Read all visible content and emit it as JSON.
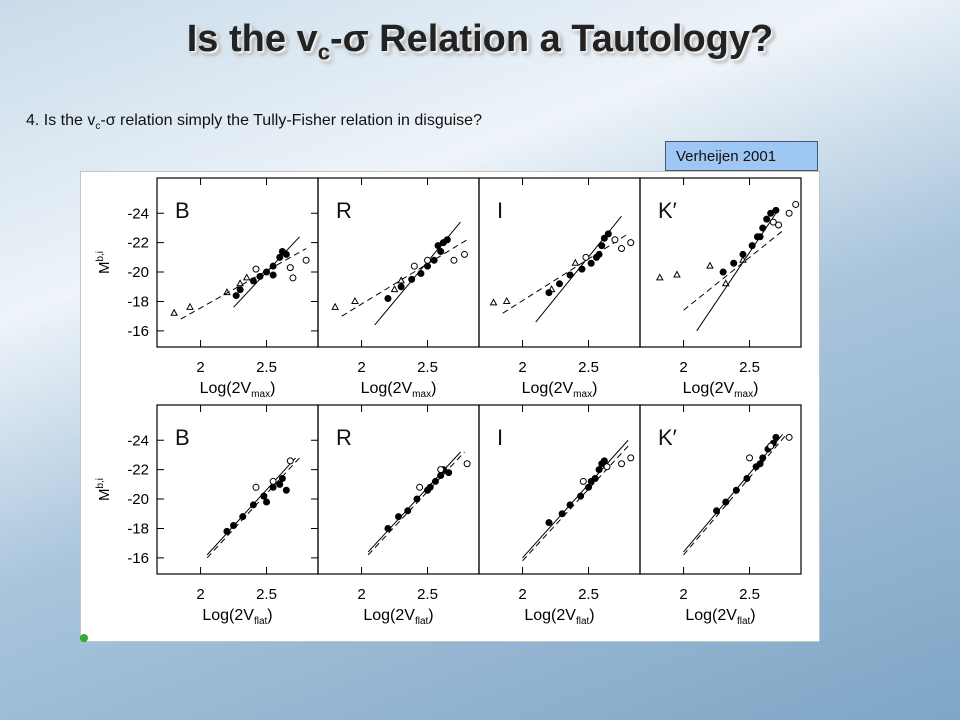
{
  "title": [
    "Is the v",
    "c",
    "-σ Relation a Tautology?"
  ],
  "question": [
    "4. Is the v",
    "c",
    "-σ relation simply the Tully-Fisher relation in disguise?"
  ],
  "citation": "Verheijen 2001",
  "chart_data": [
    {
      "type": "scatter",
      "title": "B",
      "xlabel": [
        "Log(2V",
        "max",
        ")"
      ],
      "ylabel": [
        "M",
        "b,i"
      ],
      "xlim": [
        1.67,
        2.89
      ],
      "ylim": [
        -14.9,
        -26.4
      ],
      "xticks": [
        2,
        2.5
      ],
      "yticks": [
        -24,
        -22,
        -20,
        -18,
        -16
      ],
      "series": [
        {
          "marker": "dot",
          "x": [
            2.27,
            2.3,
            2.4,
            2.45,
            2.5,
            2.55,
            2.6,
            2.62,
            2.65,
            2.55
          ],
          "values": [
            -18.4,
            -18.8,
            -19.4,
            -19.7,
            -20,
            -20.4,
            -21,
            -21.4,
            -21.2,
            -19.8
          ]
        },
        {
          "marker": "circle",
          "x": [
            2.7,
            2.8,
            2.68,
            2.42
          ],
          "values": [
            -19.6,
            -20.8,
            -20.3,
            -20.2
          ]
        },
        {
          "marker": "triangle",
          "x": [
            1.8,
            1.92,
            2.2,
            2.3,
            2.35
          ],
          "values": [
            -17.2,
            -17.6,
            -18.6,
            -19.2,
            -19.6
          ]
        }
      ],
      "fits": [
        {
          "style": "solid",
          "x": [
            2.25,
            2.75
          ],
          "values": [
            -17.6,
            -22.4
          ]
        },
        {
          "style": "dashed",
          "x": [
            1.85,
            2.8
          ],
          "values": [
            -16.8,
            -21.6
          ]
        }
      ]
    },
    {
      "type": "scatter",
      "title": "R",
      "xlabel": [
        "Log(2V",
        "max",
        ")"
      ],
      "xlim": [
        1.67,
        2.89
      ],
      "ylim": [
        -14.9,
        -26.4
      ],
      "xticks": [
        2,
        2.5
      ],
      "series": [
        {
          "marker": "dot",
          "x": [
            2.2,
            2.3,
            2.38,
            2.45,
            2.5,
            2.55,
            2.6,
            2.62,
            2.65,
            2.58
          ],
          "values": [
            -18.2,
            -19,
            -19.5,
            -19.9,
            -20.4,
            -20.8,
            -21.4,
            -22,
            -22.2,
            -21.8
          ]
        },
        {
          "marker": "circle",
          "x": [
            2.7,
            2.78,
            2.5,
            2.4
          ],
          "values": [
            -20.8,
            -21.2,
            -20.8,
            -20.4
          ]
        },
        {
          "marker": "triangle",
          "x": [
            1.8,
            1.95,
            2.25,
            2.3
          ],
          "values": [
            -17.6,
            -18,
            -18.8,
            -19.4
          ]
        }
      ],
      "fits": [
        {
          "style": "solid",
          "x": [
            2.1,
            2.75
          ],
          "values": [
            -16.4,
            -23.4
          ]
        },
        {
          "style": "dashed",
          "x": [
            1.85,
            2.8
          ],
          "values": [
            -17,
            -22.2
          ]
        }
      ]
    },
    {
      "type": "scatter",
      "title": "I",
      "xlabel": [
        "Log(2V",
        "max",
        ")"
      ],
      "xlim": [
        1.67,
        2.89
      ],
      "ylim": [
        -14.9,
        -26.4
      ],
      "xticks": [
        2,
        2.5
      ],
      "series": [
        {
          "marker": "dot",
          "x": [
            2.2,
            2.28,
            2.36,
            2.45,
            2.52,
            2.56,
            2.6,
            2.62,
            2.65,
            2.58
          ],
          "values": [
            -18.6,
            -19.2,
            -19.8,
            -20.2,
            -20.6,
            -21,
            -21.8,
            -22.3,
            -22.6,
            -21.2
          ]
        },
        {
          "marker": "circle",
          "x": [
            2.75,
            2.82,
            2.48,
            2.7
          ],
          "values": [
            -21.6,
            -22,
            -21,
            -22.2
          ]
        },
        {
          "marker": "triangle",
          "x": [
            1.78,
            1.88,
            2.22,
            2.4
          ],
          "values": [
            -17.9,
            -18,
            -18.8,
            -20.6
          ]
        }
      ],
      "fits": [
        {
          "style": "solid",
          "x": [
            2.1,
            2.75
          ],
          "values": [
            -16.6,
            -23.8
          ]
        },
        {
          "style": "dashed",
          "x": [
            1.85,
            2.8
          ],
          "values": [
            -17.2,
            -22.6
          ]
        }
      ]
    },
    {
      "type": "scatter",
      "title": "K′",
      "xlabel": [
        "Log(2V",
        "max",
        ")"
      ],
      "xlim": [
        1.67,
        2.89
      ],
      "ylim": [
        -14.9,
        -26.4
      ],
      "xticks": [
        2,
        2.5
      ],
      "series": [
        {
          "marker": "dot",
          "x": [
            2.3,
            2.38,
            2.45,
            2.52,
            2.56,
            2.6,
            2.63,
            2.66,
            2.7,
            2.58
          ],
          "values": [
            -20,
            -20.6,
            -21.2,
            -21.8,
            -22.4,
            -23,
            -23.6,
            -24,
            -24.2,
            -22.4
          ]
        },
        {
          "marker": "circle",
          "x": [
            2.72,
            2.8,
            2.68,
            2.85
          ],
          "values": [
            -23.2,
            -24,
            -23.4,
            -24.6
          ]
        },
        {
          "marker": "triangle",
          "x": [
            1.82,
            1.95,
            2.2,
            2.32,
            2.45
          ],
          "values": [
            -19.6,
            -19.8,
            -20.4,
            -19.2,
            -20.8
          ]
        }
      ],
      "fits": [
        {
          "style": "solid",
          "x": [
            2.1,
            2.7
          ],
          "values": [
            -16,
            -24
          ]
        },
        {
          "style": "dashed",
          "x": [
            2.0,
            2.75
          ],
          "values": [
            -17.4,
            -22.8
          ]
        }
      ]
    },
    {
      "type": "scatter",
      "title": "B",
      "xlabel": [
        "Log(2V",
        "flat",
        ")"
      ],
      "ylabel": [
        "M",
        "b,i"
      ],
      "xlim": [
        1.67,
        2.89
      ],
      "ylim": [
        -14.9,
        -26.4
      ],
      "xticks": [
        2,
        2.5
      ],
      "yticks": [
        -24,
        -22,
        -20,
        -18,
        -16
      ],
      "series": [
        {
          "marker": "dot",
          "x": [
            2.2,
            2.25,
            2.32,
            2.4,
            2.48,
            2.55,
            2.6,
            2.62,
            2.65,
            2.5
          ],
          "values": [
            -17.8,
            -18.2,
            -18.8,
            -19.6,
            -20.2,
            -20.8,
            -21,
            -21.4,
            -20.6,
            -19.8
          ]
        },
        {
          "marker": "circle",
          "x": [
            2.42,
            2.55,
            2.68
          ],
          "values": [
            -20.8,
            -21.2,
            -22.6
          ]
        }
      ],
      "fits": [
        {
          "style": "solid",
          "x": [
            2.05,
            2.72
          ],
          "values": [
            -16.2,
            -22.8
          ]
        },
        {
          "style": "dashed",
          "x": [
            2.05,
            2.75
          ],
          "values": [
            -16,
            -22.8
          ]
        }
      ]
    },
    {
      "type": "scatter",
      "title": "R",
      "xlabel": [
        "Log(2V",
        "flat",
        ")"
      ],
      "xlim": [
        1.67,
        2.89
      ],
      "ylim": [
        -14.9,
        -26.4
      ],
      "xticks": [
        2,
        2.5
      ],
      "series": [
        {
          "marker": "dot",
          "x": [
            2.2,
            2.28,
            2.35,
            2.42,
            2.5,
            2.56,
            2.6,
            2.62,
            2.66,
            2.52
          ],
          "values": [
            -18,
            -18.8,
            -19.2,
            -20,
            -20.6,
            -21.2,
            -21.6,
            -22,
            -21.8,
            -20.8
          ]
        },
        {
          "marker": "circle",
          "x": [
            2.44,
            2.6,
            2.8
          ],
          "values": [
            -20.8,
            -22,
            -22.4
          ]
        }
      ],
      "fits": [
        {
          "style": "solid",
          "x": [
            2.05,
            2.75
          ],
          "values": [
            -16.4,
            -23.2
          ]
        },
        {
          "style": "dashed",
          "x": [
            2.05,
            2.78
          ],
          "values": [
            -16.2,
            -23.2
          ]
        }
      ]
    },
    {
      "type": "scatter",
      "title": "I",
      "xlabel": [
        "Log(2V",
        "flat",
        ")"
      ],
      "xlim": [
        1.67,
        2.89
      ],
      "ylim": [
        -14.9,
        -26.4
      ],
      "xticks": [
        2,
        2.5
      ],
      "series": [
        {
          "marker": "dot",
          "x": [
            2.2,
            2.3,
            2.36,
            2.44,
            2.5,
            2.55,
            2.58,
            2.6,
            2.62,
            2.52
          ],
          "values": [
            -18.4,
            -19,
            -19.6,
            -20.2,
            -20.8,
            -21.4,
            -22,
            -22.4,
            -22.6,
            -21.2
          ]
        },
        {
          "marker": "circle",
          "x": [
            2.46,
            2.64,
            2.75,
            2.82
          ],
          "values": [
            -21.2,
            -22.2,
            -22.4,
            -22.8
          ]
        }
      ],
      "fits": [
        {
          "style": "solid",
          "x": [
            2.0,
            2.8
          ],
          "values": [
            -16,
            -24
          ]
        },
        {
          "style": "dashed",
          "x": [
            2.0,
            2.82
          ],
          "values": [
            -15.8,
            -23.8
          ]
        }
      ]
    },
    {
      "type": "scatter",
      "title": "K′",
      "xlabel": [
        "Log(2V",
        "flat",
        ")"
      ],
      "xlim": [
        1.67,
        2.89
      ],
      "ylim": [
        -14.9,
        -26.4
      ],
      "xticks": [
        2,
        2.5
      ],
      "series": [
        {
          "marker": "dot",
          "x": [
            2.25,
            2.32,
            2.4,
            2.48,
            2.55,
            2.6,
            2.64,
            2.68,
            2.7,
            2.58
          ],
          "values": [
            -19.2,
            -19.8,
            -20.6,
            -21.4,
            -22.2,
            -22.8,
            -23.4,
            -23.8,
            -24.2,
            -22.4
          ]
        },
        {
          "marker": "circle",
          "x": [
            2.5,
            2.66,
            2.8
          ],
          "values": [
            -22.8,
            -23.6,
            -24.2
          ]
        }
      ],
      "fits": [
        {
          "style": "solid",
          "x": [
            2.0,
            2.75
          ],
          "values": [
            -16.4,
            -24.4
          ]
        },
        {
          "style": "dashed",
          "x": [
            2.0,
            2.78
          ],
          "values": [
            -16.2,
            -24.4
          ]
        }
      ]
    }
  ]
}
